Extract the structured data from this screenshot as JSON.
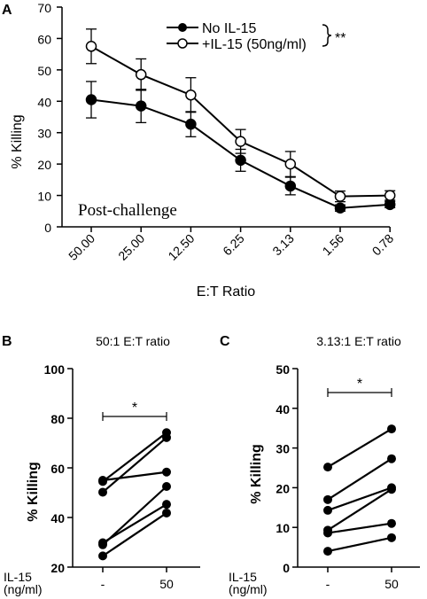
{
  "chart_data": [
    {
      "panel": "A",
      "type": "line",
      "ylabel": "% Killing",
      "xlabel": "E:T Ratio",
      "ylim": [
        0,
        70
      ],
      "yticks": [
        "0",
        "10",
        "20",
        "30",
        "40",
        "50",
        "60",
        "70"
      ],
      "categories": [
        "50.00",
        "25.00",
        "12.50",
        "6.25",
        "3.13",
        "1.56",
        "0.78"
      ],
      "annotation": "Post-challenge",
      "significance": "**",
      "legend_position": "top-right",
      "series": [
        {
          "name": "No IL-15",
          "marker": "filled-circle",
          "values": [
            40.5,
            38.5,
            32.7,
            21.2,
            13.0,
            6.0,
            7.1
          ],
          "error": [
            5.8,
            5.3,
            4.0,
            3.5,
            2.8,
            1.0,
            1.0
          ]
        },
        {
          "name": "+IL-15 (50ng/ml)",
          "marker": "open-circle",
          "values": [
            57.5,
            48.5,
            42.0,
            27.2,
            20.0,
            9.7,
            10.0
          ],
          "error": [
            5.5,
            5.0,
            5.5,
            3.8,
            4.0,
            1.7,
            1.5
          ]
        }
      ]
    },
    {
      "panel": "B",
      "type": "line",
      "title": "50:1 E:T ratio",
      "ylabel": "% Killing",
      "ylim": [
        20,
        100
      ],
      "yticks": [
        "20",
        "40",
        "60",
        "80",
        "100"
      ],
      "categories": [
        "-",
        "50"
      ],
      "x_row_label": "IL-15 (ng/ml)",
      "significance": "*",
      "pairs": [
        [
          54.5,
          74.2
        ],
        [
          55.0,
          58.3
        ],
        [
          50.2,
          72.2
        ],
        [
          29.8,
          45.3
        ],
        [
          29.0,
          52.5
        ],
        [
          24.5,
          41.8
        ]
      ]
    },
    {
      "panel": "C",
      "type": "line",
      "title": "3.13:1 E:T ratio",
      "ylabel": "% Killing",
      "ylim": [
        0,
        50
      ],
      "yticks": [
        "0",
        "10",
        "20",
        "30",
        "40",
        "50"
      ],
      "categories": [
        "-",
        "50"
      ],
      "x_row_label": "IL-15 (ng/ml)",
      "significance": "*",
      "pairs": [
        [
          25.2,
          34.8
        ],
        [
          17.0,
          27.3
        ],
        [
          14.3,
          20.0
        ],
        [
          9.3,
          19.6
        ],
        [
          8.6,
          11.0
        ],
        [
          4.0,
          7.4
        ]
      ]
    }
  ]
}
